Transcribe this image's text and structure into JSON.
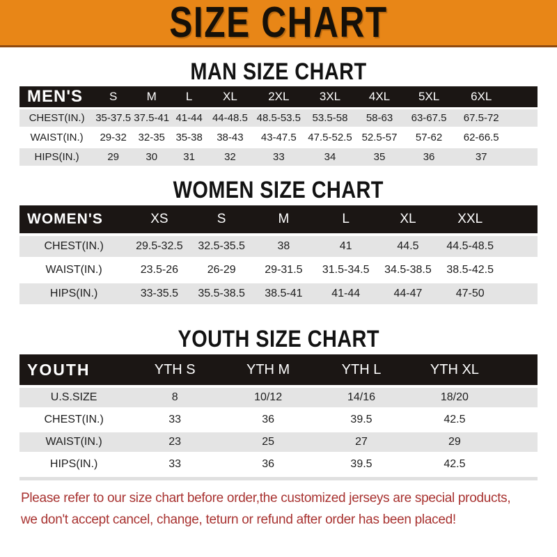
{
  "banner": {
    "title": "SIZE CHART"
  },
  "sections": [
    {
      "heading": "MAN SIZE CHART",
      "table": {
        "corner": "MEN'S",
        "sizes": [
          "S",
          "M",
          "L",
          "XL",
          "2XL",
          "3XL",
          "4XL",
          "5XL",
          "6XL"
        ],
        "rows": [
          {
            "label": "CHEST(IN.)",
            "values": [
              "35-37.5",
              "37.5-41",
              "41-44",
              "44-48.5",
              "48.5-53.5",
              "53.5-58",
              "58-63",
              "63-67.5",
              "67.5-72"
            ]
          },
          {
            "label": "WAIST(IN.)",
            "values": [
              "29-32",
              "32-35",
              "35-38",
              "38-43",
              "43-47.5",
              "47.5-52.5",
              "52.5-57",
              "57-62",
              "62-66.5"
            ]
          },
          {
            "label": "HIPS(IN.)",
            "values": [
              "29",
              "30",
              "31",
              "32",
              "33",
              "34",
              "35",
              "36",
              "37"
            ]
          }
        ]
      }
    },
    {
      "heading": "WOMEN SIZE CHART",
      "table": {
        "corner": "WOMEN'S",
        "sizes": [
          "XS",
          "S",
          "M",
          "L",
          "XL",
          "XXL"
        ],
        "rows": [
          {
            "label": "CHEST(IN.)",
            "values": [
              "29.5-32.5",
              "32.5-35.5",
              "38",
              "41",
              "44.5",
              "44.5-48.5"
            ]
          },
          {
            "label": "WAIST(IN.)",
            "values": [
              "23.5-26",
              "26-29",
              "29-31.5",
              "31.5-34.5",
              "34.5-38.5",
              "38.5-42.5"
            ]
          },
          {
            "label": "HIPS(IN.)",
            "values": [
              "33-35.5",
              "35.5-38.5",
              "38.5-41",
              "41-44",
              "44-47",
              "47-50"
            ]
          }
        ]
      }
    },
    {
      "heading": "YOUTH SIZE CHART",
      "table": {
        "corner": "YOUTH",
        "sizes": [
          "YTH S",
          "YTH M",
          "YTH L",
          "YTH XL"
        ],
        "rows": [
          {
            "label": "U.S.SIZE",
            "values": [
              "8",
              "10/12",
              "14/16",
              "18/20"
            ]
          },
          {
            "label": "CHEST(IN.)",
            "values": [
              "33",
              "36",
              "39.5",
              "42.5"
            ]
          },
          {
            "label": "WAIST(IN.)",
            "values": [
              "23",
              "25",
              "27",
              "29"
            ]
          },
          {
            "label": "HIPS(IN.)",
            "values": [
              "33",
              "36",
              "39.5",
              "42.5"
            ]
          }
        ]
      }
    }
  ],
  "footer": {
    "line1": "Please refer to our size chart before order,the customized jerseys are special products,",
    "line2": "we don't accept cancel, change, teturn or refund after order has been placed!"
  },
  "colors": {
    "accent_orange": "#e88617",
    "banner_edge": "#8e4a10",
    "header_black": "#1b1614",
    "row_gray": "#e4e4e4",
    "warning_red": "#a83230"
  }
}
